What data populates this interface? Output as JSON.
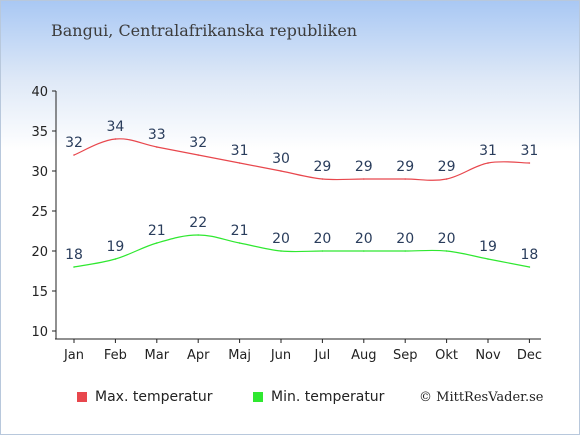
{
  "chart_data": {
    "type": "line",
    "title": "Bangui, Centralafrikanska republiken",
    "categories": [
      "Jan",
      "Feb",
      "Mar",
      "Apr",
      "Maj",
      "Jun",
      "Jul",
      "Aug",
      "Sep",
      "Okt",
      "Nov",
      "Dec"
    ],
    "series": [
      {
        "name": "Max. temperatur",
        "color": "#e8474d",
        "values": [
          32,
          34,
          33,
          32,
          31,
          30,
          29,
          29,
          29,
          29,
          31,
          31
        ]
      },
      {
        "name": "Min. temperatur",
        "color": "#2fe830",
        "values": [
          18,
          19,
          21,
          22,
          21,
          20,
          20,
          20,
          20,
          20,
          19,
          18
        ]
      }
    ],
    "ylim": [
      10,
      40
    ],
    "yticks": [
      "10",
      "15",
      "20",
      "25",
      "30",
      "35",
      "40"
    ],
    "grid": false,
    "legend_position": "bottom"
  },
  "credit": "© MittResVader.se"
}
